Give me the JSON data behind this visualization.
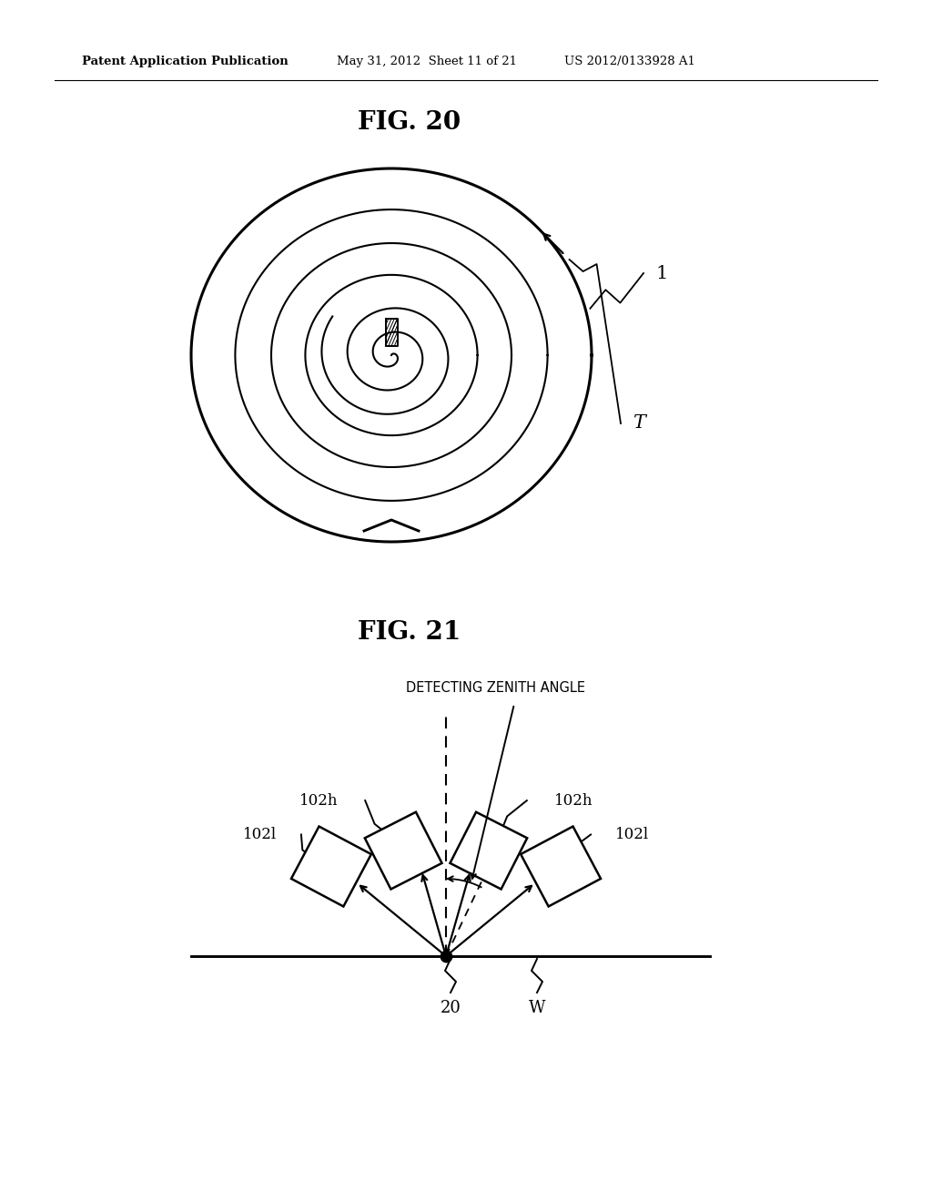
{
  "background_color": "#ffffff",
  "fig_width": 10.24,
  "fig_height": 13.2,
  "header_left": "Patent Application Publication",
  "header_mid": "May 31, 2012  Sheet 11 of 21",
  "header_right": "US 2012/0133928 A1",
  "fig20_title": "FIG. 20",
  "fig21_title": "FIG. 21",
  "fig20_label_1": "1",
  "fig20_label_T": "T",
  "fig21_label_zenith": "DETECTING ZENITH ANGLE",
  "fig21_label_102h_left": "102h",
  "fig21_label_102h_right": "102h",
  "fig21_label_102l_left": "102l",
  "fig21_label_102l_right": "102l",
  "fig21_label_20": "20",
  "fig21_label_W": "W",
  "line_color": "#000000",
  "line_width": 1.8
}
